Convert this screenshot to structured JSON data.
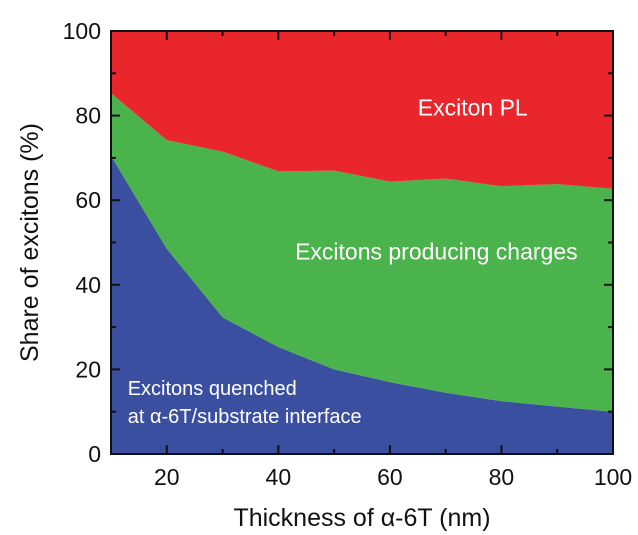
{
  "chart_data": {
    "type": "area",
    "stacked": true,
    "xlabel": "Thickness of α-6T (nm)",
    "ylabel": "Share of excitons (%)",
    "xlim": [
      10,
      100
    ],
    "ylim": [
      0,
      100
    ],
    "xticks": [
      20,
      40,
      60,
      80,
      100
    ],
    "yticks": [
      0,
      20,
      40,
      60,
      80,
      100
    ],
    "grid": false,
    "legend": "none",
    "x": [
      10,
      20,
      30,
      40,
      50,
      60,
      70,
      80,
      90,
      100
    ],
    "series": [
      {
        "color": "#3a4fa0",
        "values": [
          70.5,
          48.5,
          32.3,
          25.3,
          20.0,
          17.0,
          14.5,
          12.5,
          11.2,
          10.0
        ]
      },
      {
        "color": "#4bb34b",
        "values": [
          14.8,
          25.7,
          39.2,
          41.5,
          47.0,
          47.4,
          50.6,
          50.8,
          52.6,
          52.7
        ]
      },
      {
        "color": "#e8262b",
        "values": [
          14.7,
          25.8,
          28.5,
          33.2,
          33.0,
          35.6,
          34.9,
          36.7,
          36.2,
          37.3
        ]
      }
    ],
    "annotations": [
      {
        "name": "excitons-quenched-label",
        "lines": [
          "Excitons quenched",
          "at α-6T/substrate interface"
        ],
        "x": 13,
        "y": 14,
        "size": 20
      },
      {
        "name": "excitons-charges-label",
        "lines": [
          "Excitons producing charges"
        ],
        "x": 43,
        "y": 46,
        "size": 23
      },
      {
        "name": "exciton-pl-label",
        "lines": [
          "Exciton PL"
        ],
        "x": 65,
        "y": 80,
        "size": 23
      }
    ]
  }
}
